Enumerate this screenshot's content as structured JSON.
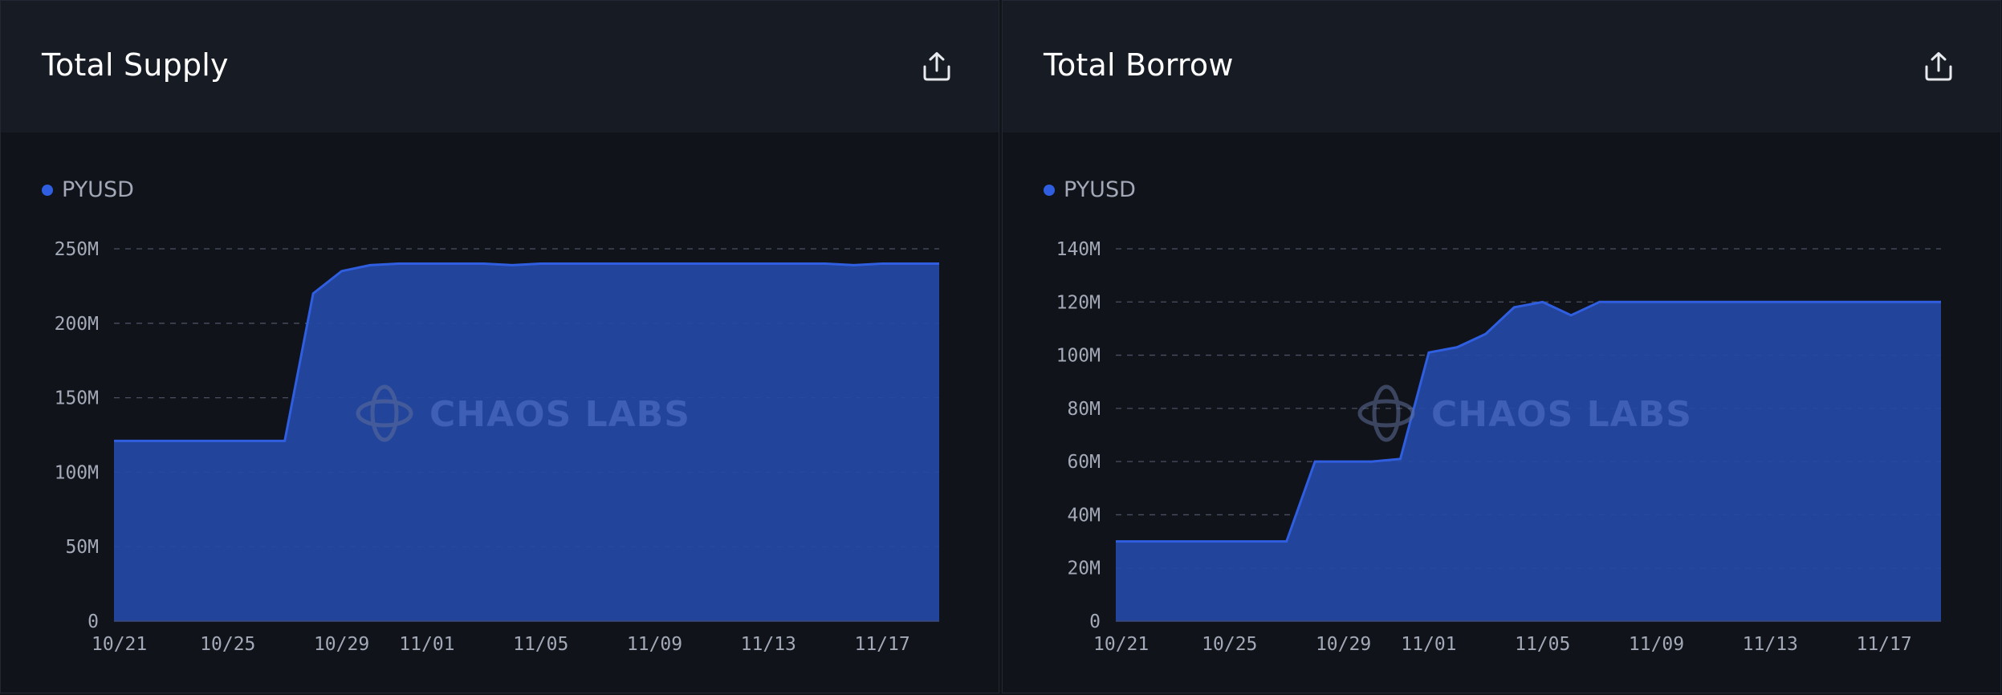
{
  "colors": {
    "series": "#2f5fe0",
    "area": "#2449a5",
    "grid": "#4a5060"
  },
  "icons": {
    "export": "share-export-icon",
    "watermark": "chaos-labs-logo"
  },
  "panels": [
    {
      "title": "Total Supply",
      "legend": "PYUSD",
      "watermark": "CHAOS LABS"
    },
    {
      "title": "Total Borrow",
      "legend": "PYUSD",
      "watermark": "CHAOS LABS"
    }
  ],
  "chart_data": [
    {
      "type": "area",
      "title": "Total Supply",
      "series": [
        {
          "name": "PYUSD"
        }
      ],
      "x": [
        "10/21",
        "10/22",
        "10/23",
        "10/24",
        "10/25",
        "10/26",
        "10/27",
        "10/28",
        "10/29",
        "10/30",
        "10/31",
        "11/01",
        "11/02",
        "11/03",
        "11/04",
        "11/05",
        "11/06",
        "11/07",
        "11/08",
        "11/09",
        "11/10",
        "11/11",
        "11/12",
        "11/13",
        "11/14",
        "11/15",
        "11/16",
        "11/17",
        "11/18",
        "11/19"
      ],
      "values": [
        121,
        121,
        121,
        121,
        121,
        121,
        121,
        220,
        235,
        239,
        240,
        240,
        240,
        240,
        239,
        240,
        240,
        240,
        240,
        240,
        240,
        240,
        240,
        240,
        240,
        240,
        239,
        240,
        240,
        240
      ],
      "unit": "M",
      "ylim": [
        0,
        250
      ],
      "yticks": [
        "0",
        "50M",
        "100M",
        "150M",
        "200M",
        "250M"
      ],
      "xticks": [
        "10/21",
        "10/25",
        "10/29",
        "11/01",
        "11/05",
        "11/09",
        "11/13",
        "11/17"
      ],
      "grid": true,
      "legend": "top-left"
    },
    {
      "type": "area",
      "title": "Total Borrow",
      "series": [
        {
          "name": "PYUSD"
        }
      ],
      "x": [
        "10/21",
        "10/22",
        "10/23",
        "10/24",
        "10/25",
        "10/26",
        "10/27",
        "10/28",
        "10/29",
        "10/30",
        "10/31",
        "11/01",
        "11/02",
        "11/03",
        "11/04",
        "11/05",
        "11/06",
        "11/07",
        "11/08",
        "11/09",
        "11/10",
        "11/11",
        "11/12",
        "11/13",
        "11/14",
        "11/15",
        "11/16",
        "11/17",
        "11/18",
        "11/19"
      ],
      "values": [
        30,
        30,
        30,
        30,
        30,
        30,
        30,
        60,
        60,
        60,
        61,
        101,
        103,
        108,
        118,
        120,
        115,
        120,
        120,
        120,
        120,
        120,
        120,
        120,
        120,
        120,
        120,
        120,
        120,
        120
      ],
      "unit": "M",
      "ylim": [
        0,
        140
      ],
      "yticks": [
        "0",
        "20M",
        "40M",
        "60M",
        "80M",
        "100M",
        "120M",
        "140M"
      ],
      "xticks": [
        "10/21",
        "10/25",
        "10/29",
        "11/01",
        "11/05",
        "11/09",
        "11/13",
        "11/17"
      ],
      "grid": true,
      "legend": "top-left"
    }
  ]
}
